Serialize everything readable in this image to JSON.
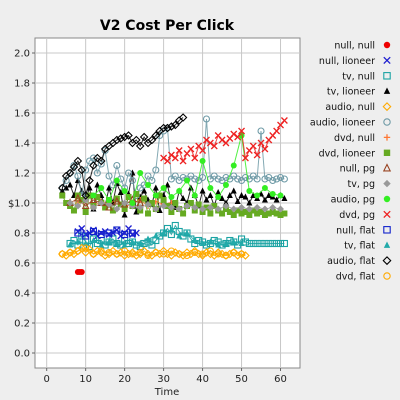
{
  "chart_data": {
    "type": "scatter",
    "title": "V2 Cost Per Click",
    "xlabel": "Time",
    "ylabel": "$",
    "xlim": [
      -3,
      65
    ],
    "ylim": [
      -0.1,
      2.1
    ],
    "xticks": [
      "0",
      "10",
      "20",
      "30",
      "40",
      "50",
      "60"
    ],
    "xtick_values": [
      0,
      10,
      20,
      30,
      40,
      50,
      60
    ],
    "yticks": [
      "0.0",
      "0.2",
      "0.4",
      "0.6",
      "0.8",
      "1.0",
      "1.2",
      "1.4",
      "1.6",
      "1.8",
      "2.0"
    ],
    "ytick_values": [
      0.0,
      0.2,
      0.4,
      0.6,
      0.8,
      1.0,
      1.2,
      1.4,
      1.6,
      1.8,
      2.0
    ],
    "grid": true,
    "legend_position": "right",
    "series": [
      {
        "name": "null, null",
        "marker": "dot",
        "color": "#ee0000",
        "x": [
          8,
          8.5,
          9
        ],
        "y": [
          0.54,
          0.54,
          0.54
        ]
      },
      {
        "name": "null, lioneer",
        "marker": "x",
        "color": "#1f1fd0",
        "x": [
          8,
          9,
          10,
          11,
          12,
          13,
          14,
          15,
          16,
          17,
          18,
          19,
          20,
          21,
          22,
          23
        ],
        "y": [
          0.81,
          0.83,
          0.79,
          0.8,
          0.82,
          0.78,
          0.8,
          0.81,
          0.79,
          0.8,
          0.82,
          0.78,
          0.8,
          0.83,
          0.79,
          0.8
        ]
      },
      {
        "name": "tv, null",
        "marker": "square-open",
        "color": "#1aa3a3",
        "x": [
          6,
          7,
          8,
          9,
          10,
          11,
          12,
          13,
          14,
          15,
          16,
          17,
          18,
          19,
          20,
          21,
          22,
          23,
          24,
          25,
          26,
          27,
          28,
          29,
          30,
          31,
          32,
          33,
          34,
          35,
          36,
          37,
          38,
          39,
          40,
          41,
          42,
          43,
          44,
          45,
          46,
          47,
          48,
          49,
          50,
          51,
          52,
          53,
          54,
          55,
          56,
          57,
          58,
          59,
          60,
          61
        ],
        "y": [
          0.73,
          0.75,
          0.72,
          0.78,
          0.74,
          0.71,
          0.76,
          0.73,
          0.75,
          0.72,
          0.74,
          0.76,
          0.73,
          0.72,
          0.75,
          0.73,
          0.74,
          0.72,
          0.71,
          0.73,
          0.74,
          0.72,
          0.75,
          0.78,
          0.8,
          0.83,
          0.79,
          0.85,
          0.81,
          0.78,
          0.8,
          0.76,
          0.73,
          0.75,
          0.74,
          0.72,
          0.73,
          0.75,
          0.74,
          0.72,
          0.73,
          0.75,
          0.74,
          0.72,
          0.76,
          0.74,
          0.73,
          0.73,
          0.73,
          0.73,
          0.73,
          0.73,
          0.73,
          0.73,
          0.73,
          0.73
        ]
      },
      {
        "name": "tv, lioneer",
        "marker": "triangle-filled",
        "color": "#000000",
        "x": [
          4,
          5,
          6,
          7,
          8,
          9,
          10,
          11,
          12,
          13,
          14,
          15,
          16,
          17,
          18,
          19,
          20,
          21,
          22,
          23,
          24,
          25,
          26,
          27,
          28,
          29,
          30,
          31,
          32,
          33,
          34,
          35,
          36,
          37,
          38,
          39,
          40,
          41,
          42,
          43,
          44,
          45,
          46,
          47,
          48,
          49,
          50,
          51,
          52,
          53,
          54,
          55,
          56,
          57,
          58,
          59,
          60,
          61
        ],
        "y": [
          1.08,
          1.1,
          1.12,
          1.05,
          1.15,
          1.08,
          1.03,
          1.1,
          0.96,
          1.12,
          1.05,
          0.98,
          1.1,
          1.0,
          1.13,
          1.07,
          0.92,
          1.06,
          1.2,
          0.94,
          1.04,
          1.08,
          1.02,
          0.99,
          1.1,
          0.95,
          1.05,
          1.12,
          1.0,
          0.97,
          1.08,
          1.03,
          1.0,
          1.1,
          1.05,
          0.98,
          1.08,
          1.02,
          1.05,
          0.98,
          1.07,
          1.03,
          1.0,
          1.05,
          1.08,
          1.01,
          1.05,
          1.04,
          1.0,
          1.05,
          1.03,
          1.06,
          1.02,
          1.05,
          1.04,
          1.02,
          1.05,
          1.03
        ]
      },
      {
        "name": "audio, null",
        "marker": "diamond-open",
        "color": "#ffaa00",
        "x": [
          4,
          5,
          6,
          7,
          8,
          9,
          10,
          11,
          12,
          13,
          14,
          15,
          16,
          17,
          18,
          19,
          20,
          21,
          22,
          23,
          24,
          25,
          26,
          27,
          28,
          29,
          30,
          31,
          32,
          33,
          34,
          35,
          36,
          37,
          38,
          39,
          40,
          41,
          42,
          43,
          44,
          45,
          46,
          47,
          48,
          49,
          50,
          51
        ],
        "y": [
          0.66,
          0.65,
          0.67,
          0.66,
          0.68,
          0.7,
          0.67,
          0.69,
          0.66,
          0.68,
          0.67,
          0.65,
          0.66,
          0.68,
          0.66,
          0.67,
          0.65,
          0.66,
          0.67,
          0.65,
          0.66,
          0.68,
          0.66,
          0.65,
          0.67,
          0.66,
          0.68,
          0.66,
          0.65,
          0.67,
          0.66,
          0.65,
          0.67,
          0.66,
          0.68,
          0.66,
          0.65,
          0.67,
          0.66,
          0.65,
          0.67,
          0.66,
          0.65,
          0.66,
          0.67,
          0.65,
          0.66,
          0.65
        ]
      },
      {
        "name": "audio, lioneer",
        "marker": "circle-open",
        "color": "#6e9aa6",
        "x": [
          4,
          5,
          6,
          7,
          8,
          9,
          10,
          11,
          12,
          13,
          14,
          15,
          16,
          17,
          18,
          19,
          20,
          21,
          22,
          23,
          24,
          25,
          26,
          27,
          28,
          29,
          30,
          31,
          32,
          33,
          34,
          35,
          36,
          37,
          38,
          39,
          40,
          41,
          42,
          43,
          44,
          45,
          46,
          47,
          48,
          49,
          50,
          51,
          52,
          53,
          54,
          55,
          56,
          57,
          58,
          59,
          60,
          61
        ],
        "y": [
          1.1,
          1.15,
          1.2,
          1.25,
          1.18,
          1.05,
          1.22,
          1.28,
          1.3,
          1.2,
          1.26,
          1.35,
          1.18,
          1.12,
          1.25,
          1.16,
          1.1,
          1.2,
          1.15,
          1.05,
          1.1,
          1.12,
          1.18,
          1.15,
          1.22,
          1.45,
          1.48,
          1.5,
          1.16,
          1.18,
          1.15,
          1.17,
          1.16,
          1.18,
          1.16,
          1.15,
          1.17,
          1.56,
          1.16,
          1.18,
          1.16,
          1.15,
          1.17,
          1.16,
          1.18,
          1.16,
          1.15,
          1.17,
          1.16,
          1.18,
          1.16,
          1.48,
          1.16,
          1.17,
          1.15,
          1.16,
          1.17,
          1.16
        ]
      },
      {
        "name": "dvd, null",
        "marker": "plus",
        "color": "#ff7733",
        "x": [
          8,
          10,
          12,
          14,
          16,
          18,
          20,
          22,
          24,
          26,
          28,
          30,
          32
        ],
        "y": [
          1.0,
          1.02,
          0.98,
          1.01,
          0.99,
          1.03,
          0.97,
          1.0,
          1.02,
          0.98,
          1.01,
          0.99,
          1.0
        ]
      },
      {
        "name": "dvd, lioneer",
        "marker": "square-filled",
        "color": "#66aa22",
        "x": [
          4,
          5,
          6,
          7,
          8,
          9,
          10,
          11,
          12,
          13,
          14,
          15,
          16,
          17,
          18,
          19,
          20,
          21,
          22,
          23,
          24,
          25,
          26,
          27,
          28,
          29,
          30,
          31,
          32,
          33,
          34,
          35,
          36,
          37,
          38,
          39,
          40,
          41,
          42,
          43,
          44,
          45,
          46,
          47,
          48,
          49,
          50,
          51,
          52,
          53,
          54,
          55,
          56,
          57,
          58,
          59,
          60,
          61
        ],
        "y": [
          1.05,
          1.0,
          0.98,
          0.95,
          1.05,
          1.02,
          0.94,
          1.05,
          0.98,
          1.04,
          1.0,
          0.97,
          1.02,
          0.95,
          1.03,
          0.99,
          0.96,
          1.04,
          0.98,
          1.06,
          0.95,
          1.03,
          0.93,
          1.0,
          0.96,
          1.05,
          1.02,
          0.98,
          0.94,
          1.0,
          0.96,
          0.93,
          0.98,
          1.0,
          0.95,
          0.99,
          0.94,
          0.97,
          0.93,
          0.98,
          0.95,
          0.93,
          0.96,
          0.94,
          0.92,
          0.95,
          0.93,
          0.94,
          0.92,
          0.95,
          0.93,
          0.94,
          0.92,
          0.93,
          0.94,
          0.93,
          0.92,
          0.93
        ]
      },
      {
        "name": "null, pg",
        "marker": "triangle-open",
        "color": "#994422",
        "x": [
          6,
          8,
          10,
          12,
          14,
          16,
          18,
          20,
          22,
          24
        ],
        "y": [
          1.0,
          1.03,
          0.98,
          1.02,
          1.0,
          0.97,
          1.01,
          0.99,
          1.02,
          1.0
        ]
      },
      {
        "name": "tv, pg",
        "marker": "diamond-filled",
        "color": "#999999",
        "x": [
          6,
          8,
          10,
          12,
          14,
          16,
          18,
          20,
          22,
          24,
          26,
          28,
          30,
          32,
          34,
          36,
          38,
          40,
          42,
          44,
          46,
          48,
          50,
          52,
          54,
          56,
          58,
          60
        ],
        "y": [
          1.0,
          0.98,
          1.02,
          0.97,
          1.0,
          0.99,
          0.96,
          1.0,
          0.98,
          0.97,
          0.99,
          0.96,
          0.98,
          0.97,
          0.96,
          0.98,
          0.97,
          0.96,
          0.97,
          0.96,
          0.98,
          0.96,
          0.97,
          0.96,
          0.97,
          0.96,
          0.97,
          0.96
        ]
      },
      {
        "name": "audio, pg",
        "marker": "dot",
        "color": "#33ee22",
        "x": [
          12,
          14,
          16,
          18,
          20,
          22,
          24,
          26,
          28,
          30,
          32,
          34,
          36,
          38,
          40,
          42,
          44,
          46,
          48,
          50,
          52,
          54,
          56,
          58,
          60
        ],
        "y": [
          1.05,
          1.1,
          1.02,
          1.15,
          1.08,
          1.0,
          1.2,
          1.12,
          1.05,
          1.1,
          1.04,
          1.08,
          1.15,
          1.05,
          1.28,
          1.1,
          1.04,
          1.12,
          1.25,
          1.45,
          1.08,
          1.05,
          1.1,
          1.06,
          1.05
        ]
      },
      {
        "name": "dvd, pg",
        "marker": "x",
        "color": "#ee2222",
        "x": [
          30,
          31,
          32,
          33,
          34,
          35,
          36,
          37,
          38,
          39,
          40,
          41,
          42,
          43,
          44,
          45,
          46,
          47,
          48,
          49,
          50,
          51,
          52,
          53,
          54,
          55,
          56,
          57,
          58,
          59,
          60,
          61
        ],
        "y": [
          1.3,
          1.28,
          1.32,
          1.3,
          1.35,
          1.28,
          1.33,
          1.36,
          1.3,
          1.38,
          1.35,
          1.42,
          1.4,
          1.38,
          1.45,
          1.42,
          1.4,
          1.43,
          1.46,
          1.44,
          1.48,
          1.3,
          1.35,
          1.38,
          1.32,
          1.4,
          1.36,
          1.42,
          1.45,
          1.48,
          1.52,
          1.55
        ]
      },
      {
        "name": "null, flat",
        "marker": "square-open",
        "color": "#1122cc",
        "x": [
          8,
          10,
          12,
          14,
          16,
          18,
          20,
          22
        ],
        "y": [
          0.8,
          0.78,
          0.81,
          0.79,
          0.8,
          0.82,
          0.79,
          0.8
        ]
      },
      {
        "name": "tv, flat",
        "marker": "triangle-filled",
        "color": "#22aaaa",
        "x": [
          6,
          8,
          10,
          12,
          14,
          16,
          18,
          20,
          22,
          24,
          26,
          28,
          30,
          32,
          34,
          36,
          38,
          40,
          42,
          44,
          46,
          48,
          50
        ],
        "y": [
          0.72,
          0.74,
          0.73,
          0.75,
          0.72,
          0.74,
          0.73,
          0.72,
          0.74,
          0.73,
          0.76,
          0.78,
          0.8,
          0.82,
          0.78,
          0.8,
          0.75,
          0.73,
          0.74,
          0.72,
          0.73,
          0.74,
          0.73
        ]
      },
      {
        "name": "audio, flat",
        "marker": "diamond-open",
        "color": "#000000",
        "x": [
          4,
          5,
          6,
          7,
          8,
          9,
          10,
          11,
          12,
          13,
          14,
          15,
          16,
          17,
          18,
          19,
          20,
          21,
          22,
          23,
          24,
          25,
          26,
          27,
          28,
          29,
          30,
          31,
          32,
          33,
          34,
          35
        ],
        "y": [
          1.1,
          1.18,
          1.2,
          1.24,
          1.28,
          1.22,
          1.05,
          1.15,
          1.25,
          1.3,
          1.28,
          1.36,
          1.38,
          1.4,
          1.42,
          1.43,
          1.44,
          1.45,
          1.4,
          1.42,
          1.38,
          1.44,
          1.4,
          1.42,
          1.45,
          1.48,
          1.5,
          1.5,
          1.51,
          1.52,
          1.55,
          1.57
        ]
      },
      {
        "name": "dvd, flat",
        "marker": "circle-open",
        "color": "#ffaa00",
        "x": [
          4,
          6,
          8,
          10,
          12,
          14,
          16,
          18,
          20,
          22,
          24,
          26,
          28,
          30,
          32,
          34,
          36,
          38,
          40,
          42,
          44,
          46,
          48,
          50
        ],
        "y": [
          0.66,
          0.67,
          0.68,
          0.7,
          0.66,
          0.68,
          0.67,
          0.66,
          0.68,
          0.66,
          0.67,
          0.65,
          0.67,
          0.66,
          0.68,
          0.66,
          0.65,
          0.67,
          0.66,
          0.68,
          0.66,
          0.65,
          0.67,
          0.66
        ]
      }
    ]
  }
}
